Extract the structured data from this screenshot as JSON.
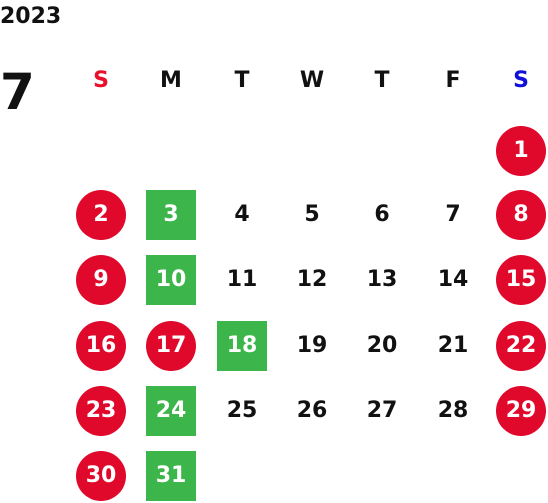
{
  "calendar": {
    "year": "2023",
    "month": "7",
    "weekdays": [
      {
        "label": "S",
        "kind": "sun"
      },
      {
        "label": "M",
        "kind": ""
      },
      {
        "label": "T",
        "kind": ""
      },
      {
        "label": "W",
        "kind": ""
      },
      {
        "label": "T",
        "kind": ""
      },
      {
        "label": "F",
        "kind": ""
      },
      {
        "label": "S",
        "kind": "sat"
      }
    ],
    "colors": {
      "holiday": "#e0082b",
      "event": "#3cb54a"
    },
    "weeks": [
      [
        null,
        null,
        null,
        null,
        null,
        null,
        {
          "day": "1",
          "type": "holiday"
        }
      ],
      [
        {
          "day": "2",
          "type": "holiday"
        },
        {
          "day": "3",
          "type": "event"
        },
        {
          "day": "4",
          "type": "normal"
        },
        {
          "day": "5",
          "type": "normal"
        },
        {
          "day": "6",
          "type": "normal"
        },
        {
          "day": "7",
          "type": "normal"
        },
        {
          "day": "8",
          "type": "holiday"
        }
      ],
      [
        {
          "day": "9",
          "type": "holiday"
        },
        {
          "day": "10",
          "type": "event"
        },
        {
          "day": "11",
          "type": "normal"
        },
        {
          "day": "12",
          "type": "normal"
        },
        {
          "day": "13",
          "type": "normal"
        },
        {
          "day": "14",
          "type": "normal"
        },
        {
          "day": "15",
          "type": "holiday"
        }
      ],
      [
        {
          "day": "16",
          "type": "holiday"
        },
        {
          "day": "17",
          "type": "holiday"
        },
        {
          "day": "18",
          "type": "event"
        },
        {
          "day": "19",
          "type": "normal"
        },
        {
          "day": "20",
          "type": "normal"
        },
        {
          "day": "21",
          "type": "normal"
        },
        {
          "day": "22",
          "type": "holiday"
        }
      ],
      [
        {
          "day": "23",
          "type": "holiday"
        },
        {
          "day": "24",
          "type": "event"
        },
        {
          "day": "25",
          "type": "normal"
        },
        {
          "day": "26",
          "type": "normal"
        },
        {
          "day": "27",
          "type": "normal"
        },
        {
          "day": "28",
          "type": "normal"
        },
        {
          "day": "29",
          "type": "holiday"
        }
      ],
      [
        {
          "day": "30",
          "type": "holiday"
        },
        {
          "day": "31",
          "type": "event"
        },
        null,
        null,
        null,
        null,
        null
      ]
    ]
  }
}
